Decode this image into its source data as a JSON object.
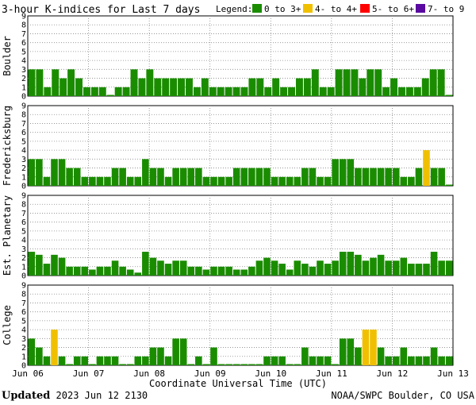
{
  "title": "3-hour K-indices for Last 7 days",
  "legend": {
    "label": "Legend:",
    "items": [
      {
        "label": "0 to 3+",
        "color": "#1a8c00"
      },
      {
        "label": "4- to 4+",
        "color": "#f0c000"
      },
      {
        "label": "5- to 6+",
        "color": "#ff0000"
      },
      {
        "label": "7- to 9",
        "color": "#5a0aa0"
      }
    ]
  },
  "xlabel": "Coordinate Universal Time (UTC)",
  "x_tick_labels": [
    "Jun 06",
    "Jun 07",
    "Jun 08",
    "Jun 09",
    "Jun 10",
    "Jun 11",
    "Jun 12",
    "Jun 13"
  ],
  "y_tick_labels": [
    "0",
    "1",
    "2",
    "3",
    "4",
    "5",
    "6",
    "7",
    "8",
    "9"
  ],
  "footer": {
    "updated_label": "Updated",
    "updated_value": "2023 Jun 12 2130",
    "source": "NOAA/SWPC Boulder, CO USA"
  },
  "chart_data": [
    {
      "type": "bar",
      "station": "Boulder",
      "ylim": [
        0,
        9
      ],
      "x_start": "Jun 06",
      "x_end": "Jun 13",
      "grid": "dotted",
      "values": [
        3,
        3,
        1,
        3,
        2,
        3,
        2,
        1,
        1,
        1,
        0,
        1,
        1,
        3,
        2,
        3,
        2,
        2,
        2,
        2,
        2,
        1,
        2,
        1,
        1,
        1,
        1,
        1,
        2,
        2,
        1,
        2,
        1,
        1,
        2,
        2,
        3,
        1,
        1,
        3,
        3,
        3,
        2,
        3,
        3,
        1,
        2,
        1,
        1,
        1,
        2,
        3,
        3,
        0
      ]
    },
    {
      "type": "bar",
      "station": "Fredericksburg",
      "ylim": [
        0,
        9
      ],
      "x_start": "Jun 06",
      "x_end": "Jun 13",
      "grid": "dotted",
      "values": [
        3,
        3,
        1,
        3,
        3,
        2,
        2,
        1,
        1,
        1,
        1,
        2,
        2,
        1,
        1,
        3,
        2,
        2,
        1,
        2,
        2,
        2,
        2,
        1,
        1,
        1,
        1,
        2,
        2,
        2,
        2,
        2,
        1,
        1,
        1,
        1,
        2,
        2,
        1,
        1,
        3,
        3,
        3,
        2,
        2,
        2,
        2,
        2,
        2,
        1,
        1,
        2,
        4,
        2,
        2,
        0
      ]
    },
    {
      "type": "bar",
      "station": "Est. Planetary",
      "ylim": [
        0,
        9
      ],
      "x_start": "Jun 06",
      "x_end": "Jun 13",
      "grid": "dotted",
      "values": [
        2.67,
        2.33,
        1.33,
        2.33,
        2,
        1,
        1,
        1,
        0.67,
        1,
        1,
        1.67,
        1,
        0.67,
        0.33,
        2.67,
        2,
        1.67,
        1.33,
        1.67,
        1.67,
        1,
        1,
        0.67,
        1,
        1,
        1,
        0.67,
        0.67,
        1,
        1.67,
        2,
        1.67,
        1.33,
        0.67,
        1.67,
        1.33,
        1,
        1.67,
        1.33,
        1.67,
        2.67,
        2.67,
        2.33,
        1.67,
        2,
        2.33,
        1.67,
        1.67,
        2,
        1.33,
        1.33,
        1.33,
        2.67,
        1.67,
        1.67
      ]
    },
    {
      "type": "bar",
      "station": "College",
      "ylim": [
        0,
        9
      ],
      "x_start": "Jun 06",
      "x_end": "Jun 13",
      "grid": "dotted",
      "values": [
        3,
        2,
        1,
        4,
        1,
        0,
        1,
        1,
        0,
        1,
        1,
        1,
        0,
        0,
        1,
        1,
        2,
        2,
        1,
        3,
        3,
        0,
        1,
        0,
        2,
        0,
        0,
        0,
        0,
        0,
        0,
        1,
        1,
        1,
        0,
        0,
        2,
        1,
        1,
        1,
        0,
        3,
        3,
        2,
        4,
        4,
        2,
        1,
        1,
        2,
        1,
        1,
        1,
        2,
        1,
        1
      ]
    }
  ]
}
